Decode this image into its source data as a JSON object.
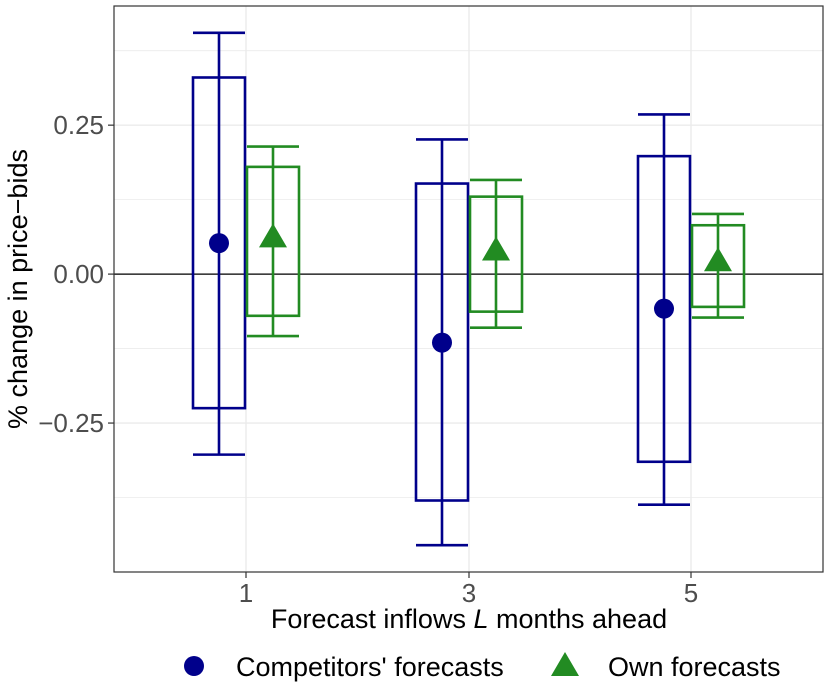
{
  "chart_data": {
    "type": "boxplot",
    "title": "",
    "xlabel_parts": [
      "Forecast inflows ",
      "L",
      " months ahead"
    ],
    "ylabel": "% change in price−bids",
    "ylim": [
      -0.5,
      0.45
    ],
    "yticks": [
      -0.25,
      0.0,
      0.25
    ],
    "ytick_labels": [
      "−0.25",
      "0.00",
      "0.25"
    ],
    "reference_line_y": 0.0,
    "grid": true,
    "categories": [
      "1",
      "3",
      "5"
    ],
    "series": [
      {
        "name": "Competitors' forecasts",
        "color": "#00008B",
        "marker": "circle",
        "point": [
          0.052,
          -0.115,
          -0.058
        ],
        "box_low": [
          -0.225,
          -0.38,
          -0.315
        ],
        "box_high": [
          0.33,
          0.152,
          0.198
        ],
        "whisker_low": [
          -0.303,
          -0.455,
          -0.387
        ],
        "whisker_high": [
          0.405,
          0.226,
          0.268
        ]
      },
      {
        "name": "Own forecasts",
        "color": "#228B22",
        "marker": "triangle",
        "point": [
          0.06,
          0.038,
          0.02
        ],
        "box_low": [
          -0.07,
          -0.063,
          -0.055
        ],
        "box_high": [
          0.18,
          0.13,
          0.082
        ],
        "whisker_low": [
          -0.104,
          -0.09,
          -0.073
        ],
        "whisker_high": [
          0.214,
          0.158,
          0.101
        ]
      }
    ],
    "legend_position": "bottom"
  }
}
